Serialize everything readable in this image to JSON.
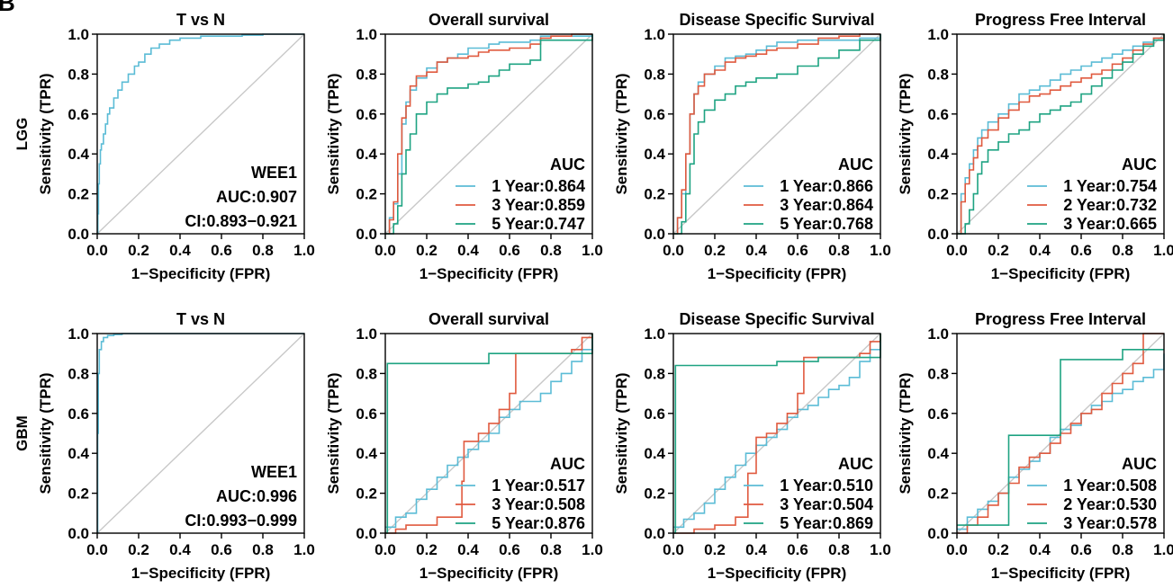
{
  "figure": {
    "panel_letter": "B",
    "xlabel": "1−Specificity (FPR)",
    "ylabel": "Sensitivity (TPR)",
    "ticks": [
      "0.0",
      "0.2",
      "0.4",
      "0.6",
      "0.8",
      "1.0"
    ],
    "legend_title": "AUC",
    "colors": {
      "c1": "#5bbcd6",
      "c2": "#e05a3f",
      "c3": "#1ea382",
      "diag": "#c8c8c8",
      "axis": "#000000"
    }
  },
  "chart_data": [
    {
      "type": "line",
      "row": "LGG",
      "title": "T vs N",
      "xlim": [
        0,
        1
      ],
      "ylim": [
        0,
        1
      ],
      "annotation": [
        "WEE1",
        "AUC:0.907",
        "CI:0.893−0.921"
      ],
      "series": [
        {
          "color": "c1",
          "x": [
            0,
            0.003,
            0.006,
            0.01,
            0.015,
            0.02,
            0.03,
            0.04,
            0.05,
            0.06,
            0.08,
            0.1,
            0.12,
            0.15,
            0.18,
            0.2,
            0.23,
            0.26,
            0.3,
            0.35,
            0.4,
            0.5,
            0.6,
            0.7,
            0.8,
            0.9,
            1.0
          ],
          "y": [
            0,
            0.1,
            0.25,
            0.35,
            0.42,
            0.45,
            0.5,
            0.55,
            0.6,
            0.63,
            0.68,
            0.72,
            0.76,
            0.8,
            0.84,
            0.86,
            0.9,
            0.93,
            0.95,
            0.97,
            0.98,
            0.99,
            0.99,
            0.995,
            1,
            1,
            1
          ]
        }
      ]
    },
    {
      "type": "line",
      "row": "",
      "title": "Overall survival",
      "xlim": [
        0,
        1
      ],
      "ylim": [
        0,
        1
      ],
      "legend": [
        "1 Year:0.864",
        "3 Year:0.859",
        "5 Year:0.747"
      ],
      "series": [
        {
          "name": "1 Year:0.864",
          "color": "c1",
          "x": [
            0,
            0.02,
            0.04,
            0.06,
            0.08,
            0.1,
            0.12,
            0.15,
            0.2,
            0.25,
            0.3,
            0.35,
            0.4,
            0.45,
            0.5,
            0.55,
            0.6,
            0.7,
            0.75,
            0.8,
            0.9,
            1.0
          ],
          "y": [
            0,
            0.08,
            0.15,
            0.3,
            0.55,
            0.66,
            0.72,
            0.78,
            0.83,
            0.86,
            0.88,
            0.9,
            0.93,
            0.93,
            0.95,
            0.96,
            0.96,
            0.97,
            0.99,
            0.99,
            0.99,
            1
          ]
        },
        {
          "name": "3 Year:0.859",
          "color": "c2",
          "x": [
            0,
            0.02,
            0.04,
            0.06,
            0.08,
            0.1,
            0.12,
            0.15,
            0.2,
            0.25,
            0.3,
            0.35,
            0.4,
            0.45,
            0.5,
            0.6,
            0.7,
            0.75,
            0.8,
            0.9,
            1.0
          ],
          "y": [
            0,
            0.07,
            0.16,
            0.4,
            0.58,
            0.64,
            0.74,
            0.79,
            0.81,
            0.86,
            0.88,
            0.88,
            0.89,
            0.91,
            0.92,
            0.93,
            0.95,
            0.98,
            0.99,
            1,
            1
          ]
        },
        {
          "name": "5 Year:0.747",
          "color": "c3",
          "x": [
            0,
            0.04,
            0.06,
            0.08,
            0.1,
            0.12,
            0.15,
            0.2,
            0.25,
            0.3,
            0.35,
            0.4,
            0.45,
            0.5,
            0.55,
            0.6,
            0.7,
            0.75,
            0.8,
            0.9,
            1.0
          ],
          "y": [
            0,
            0.05,
            0.14,
            0.3,
            0.42,
            0.5,
            0.6,
            0.66,
            0.7,
            0.73,
            0.73,
            0.75,
            0.76,
            0.79,
            0.82,
            0.85,
            0.87,
            0.97,
            0.97,
            0.97,
            1
          ]
        }
      ]
    },
    {
      "type": "line",
      "row": "",
      "title": "Disease Specific Survival",
      "xlim": [
        0,
        1
      ],
      "ylim": [
        0,
        1
      ],
      "legend": [
        "1 Year:0.866",
        "3 Year:0.864",
        "5 Year:0.768"
      ],
      "series": [
        {
          "name": "1 Year:0.866",
          "color": "c1",
          "x": [
            0,
            0.02,
            0.04,
            0.06,
            0.08,
            0.1,
            0.12,
            0.15,
            0.2,
            0.25,
            0.3,
            0.35,
            0.4,
            0.45,
            0.5,
            0.6,
            0.7,
            0.8,
            0.9,
            1.0
          ],
          "y": [
            0,
            0.08,
            0.2,
            0.4,
            0.6,
            0.7,
            0.76,
            0.8,
            0.84,
            0.88,
            0.89,
            0.9,
            0.92,
            0.94,
            0.96,
            0.97,
            0.97,
            0.97,
            0.98,
            1
          ]
        },
        {
          "name": "3 Year:0.864",
          "color": "c2",
          "x": [
            0,
            0.02,
            0.04,
            0.06,
            0.08,
            0.1,
            0.12,
            0.15,
            0.2,
            0.25,
            0.3,
            0.35,
            0.4,
            0.45,
            0.5,
            0.6,
            0.7,
            0.8,
            0.9,
            1.0
          ],
          "y": [
            0,
            0.08,
            0.22,
            0.4,
            0.6,
            0.7,
            0.74,
            0.8,
            0.82,
            0.86,
            0.88,
            0.89,
            0.9,
            0.92,
            0.93,
            0.95,
            0.98,
            0.99,
            1,
            1
          ]
        },
        {
          "name": "5 Year:0.768",
          "color": "c3",
          "x": [
            0,
            0.04,
            0.06,
            0.08,
            0.1,
            0.12,
            0.15,
            0.2,
            0.25,
            0.3,
            0.35,
            0.4,
            0.5,
            0.6,
            0.7,
            0.8,
            0.9,
            1.0
          ],
          "y": [
            0,
            0.06,
            0.2,
            0.35,
            0.5,
            0.56,
            0.62,
            0.67,
            0.7,
            0.74,
            0.76,
            0.78,
            0.8,
            0.84,
            0.88,
            0.92,
            0.97,
            1
          ]
        }
      ]
    },
    {
      "type": "line",
      "row": "",
      "title": "Progress Free Interval",
      "xlim": [
        0,
        1
      ],
      "ylim": [
        0,
        1
      ],
      "legend": [
        "1 Year:0.754",
        "2 Year:0.732",
        "3 Year:0.665"
      ],
      "series": [
        {
          "name": "1 Year:0.754",
          "color": "c1",
          "x": [
            0,
            0.02,
            0.04,
            0.06,
            0.08,
            0.1,
            0.12,
            0.15,
            0.2,
            0.25,
            0.3,
            0.35,
            0.4,
            0.45,
            0.5,
            0.55,
            0.6,
            0.65,
            0.7,
            0.75,
            0.8,
            0.85,
            0.9,
            0.95,
            1.0
          ],
          "y": [
            0,
            0.2,
            0.28,
            0.35,
            0.42,
            0.48,
            0.52,
            0.56,
            0.6,
            0.65,
            0.7,
            0.72,
            0.74,
            0.77,
            0.8,
            0.82,
            0.84,
            0.86,
            0.88,
            0.9,
            0.92,
            0.94,
            0.96,
            0.98,
            1
          ]
        },
        {
          "name": "2 Year:0.732",
          "color": "c2",
          "x": [
            0,
            0.02,
            0.04,
            0.06,
            0.08,
            0.1,
            0.12,
            0.15,
            0.2,
            0.25,
            0.3,
            0.35,
            0.4,
            0.45,
            0.5,
            0.55,
            0.6,
            0.65,
            0.7,
            0.75,
            0.8,
            0.85,
            0.9,
            0.95,
            1.0
          ],
          "y": [
            0,
            0.16,
            0.25,
            0.32,
            0.38,
            0.44,
            0.48,
            0.52,
            0.58,
            0.62,
            0.66,
            0.69,
            0.7,
            0.72,
            0.74,
            0.76,
            0.78,
            0.8,
            0.82,
            0.85,
            0.88,
            0.92,
            0.95,
            0.98,
            1
          ]
        },
        {
          "name": "3 Year:0.665",
          "color": "c3",
          "x": [
            0,
            0.04,
            0.06,
            0.08,
            0.1,
            0.12,
            0.15,
            0.2,
            0.25,
            0.3,
            0.35,
            0.4,
            0.45,
            0.5,
            0.55,
            0.6,
            0.65,
            0.7,
            0.75,
            0.8,
            0.85,
            0.9,
            0.95,
            1.0
          ],
          "y": [
            0,
            0.05,
            0.12,
            0.2,
            0.3,
            0.36,
            0.42,
            0.46,
            0.5,
            0.52,
            0.56,
            0.6,
            0.62,
            0.64,
            0.66,
            0.7,
            0.74,
            0.78,
            0.82,
            0.86,
            0.9,
            0.94,
            0.97,
            1
          ]
        }
      ]
    },
    {
      "type": "line",
      "row": "GBM",
      "title": "T vs N",
      "xlim": [
        0,
        1
      ],
      "ylim": [
        0,
        1
      ],
      "annotation": [
        "WEE1",
        "AUC:0.996",
        "CI:0.993−0.999"
      ],
      "series": [
        {
          "color": "c1",
          "x": [
            0,
            0.002,
            0.005,
            0.01,
            0.02,
            0.03,
            0.05,
            0.08,
            0.12,
            0.2,
            0.4,
            1.0
          ],
          "y": [
            0,
            0.5,
            0.8,
            0.92,
            0.96,
            0.98,
            0.99,
            0.995,
            1,
            1,
            1,
            1
          ]
        }
      ]
    },
    {
      "type": "line",
      "row": "",
      "title": "Overall survival",
      "xlim": [
        0,
        1
      ],
      "ylim": [
        0,
        1
      ],
      "legend": [
        "1 Year:0.517",
        "3 Year:0.508",
        "5 Year:0.876"
      ],
      "series": [
        {
          "name": "1 Year:0.517",
          "color": "c1",
          "x": [
            0,
            0.05,
            0.1,
            0.15,
            0.2,
            0.25,
            0.3,
            0.35,
            0.4,
            0.45,
            0.5,
            0.55,
            0.6,
            0.65,
            0.7,
            0.75,
            0.8,
            0.85,
            0.9,
            0.95,
            1.0
          ],
          "y": [
            0.03,
            0.08,
            0.1,
            0.17,
            0.22,
            0.28,
            0.34,
            0.38,
            0.42,
            0.46,
            0.5,
            0.58,
            0.62,
            0.66,
            0.66,
            0.7,
            0.76,
            0.8,
            0.86,
            0.92,
            1
          ]
        },
        {
          "name": "3 Year:0.508",
          "color": "c2",
          "x": [
            0,
            0.05,
            0.1,
            0.15,
            0.2,
            0.25,
            0.3,
            0.35,
            0.37,
            0.38,
            0.45,
            0.5,
            0.55,
            0.6,
            0.62,
            0.63,
            0.7,
            0.75,
            0.8,
            0.9,
            0.95,
            1.0
          ],
          "y": [
            0,
            0.02,
            0.04,
            0.04,
            0.04,
            0.08,
            0.08,
            0.08,
            0.26,
            0.46,
            0.5,
            0.55,
            0.62,
            0.7,
            0.7,
            0.9,
            0.9,
            0.9,
            0.9,
            0.92,
            0.98,
            1
          ]
        },
        {
          "name": "5 Year:0.876",
          "color": "c3",
          "x": [
            0,
            0.01,
            0.4,
            0.5,
            0.7,
            0.9,
            1.0
          ],
          "y": [
            0,
            0.85,
            0.85,
            0.9,
            0.9,
            0.9,
            1
          ]
        }
      ]
    },
    {
      "type": "line",
      "row": "",
      "title": "Disease Specific Survival",
      "xlim": [
        0,
        1
      ],
      "ylim": [
        0,
        1
      ],
      "legend": [
        "1 Year:0.510",
        "3 Year:0.504",
        "5 Year:0.869"
      ],
      "series": [
        {
          "name": "1 Year:0.510",
          "color": "c1",
          "x": [
            0,
            0.05,
            0.1,
            0.15,
            0.2,
            0.25,
            0.3,
            0.35,
            0.4,
            0.45,
            0.5,
            0.55,
            0.6,
            0.65,
            0.7,
            0.75,
            0.8,
            0.85,
            0.9,
            0.95,
            1.0
          ],
          "y": [
            0.03,
            0.07,
            0.1,
            0.15,
            0.22,
            0.28,
            0.34,
            0.4,
            0.44,
            0.48,
            0.52,
            0.58,
            0.62,
            0.64,
            0.68,
            0.72,
            0.74,
            0.78,
            0.86,
            0.92,
            1
          ]
        },
        {
          "name": "3 Year:0.504",
          "color": "c2",
          "x": [
            0,
            0.1,
            0.2,
            0.3,
            0.35,
            0.36,
            0.4,
            0.45,
            0.5,
            0.55,
            0.6,
            0.62,
            0.63,
            0.7,
            0.8,
            0.9,
            0.95,
            1.0
          ],
          "y": [
            0,
            0.02,
            0.04,
            0.08,
            0.08,
            0.3,
            0.48,
            0.5,
            0.55,
            0.6,
            0.7,
            0.7,
            0.88,
            0.88,
            0.88,
            0.9,
            0.96,
            1
          ]
        },
        {
          "name": "5 Year:0.869",
          "color": "c3",
          "x": [
            0,
            0.01,
            0.4,
            0.5,
            0.7,
            0.9,
            1.0
          ],
          "y": [
            0,
            0.84,
            0.84,
            0.86,
            0.88,
            0.88,
            1
          ]
        }
      ]
    },
    {
      "type": "line",
      "row": "",
      "title": "Progress Free Interval",
      "xlim": [
        0,
        1
      ],
      "ylim": [
        0,
        1
      ],
      "legend": [
        "1 Year:0.508",
        "2 Year:0.530",
        "3 Year:0.578"
      ],
      "series": [
        {
          "name": "1 Year:0.508",
          "color": "c1",
          "x": [
            0,
            0.05,
            0.1,
            0.15,
            0.2,
            0.25,
            0.3,
            0.35,
            0.4,
            0.45,
            0.5,
            0.55,
            0.6,
            0.65,
            0.7,
            0.75,
            0.8,
            0.85,
            0.9,
            0.95,
            1.0
          ],
          "y": [
            0.02,
            0.08,
            0.12,
            0.16,
            0.2,
            0.28,
            0.32,
            0.36,
            0.4,
            0.48,
            0.52,
            0.54,
            0.6,
            0.64,
            0.66,
            0.7,
            0.72,
            0.76,
            0.78,
            0.82,
            0.9
          ]
        },
        {
          "name": "2 Year:0.530",
          "color": "c2",
          "x": [
            0,
            0.05,
            0.1,
            0.15,
            0.2,
            0.25,
            0.3,
            0.35,
            0.4,
            0.45,
            0.5,
            0.55,
            0.6,
            0.65,
            0.7,
            0.75,
            0.8,
            0.85,
            0.9,
            0.95,
            1.0
          ],
          "y": [
            0,
            0.04,
            0.08,
            0.14,
            0.2,
            0.25,
            0.33,
            0.38,
            0.4,
            0.45,
            0.5,
            0.55,
            0.6,
            0.62,
            0.7,
            0.75,
            0.8,
            0.85,
            1,
            1,
            1
          ]
        },
        {
          "name": "3 Year:0.578",
          "color": "c3",
          "x": [
            0,
            0.1,
            0.2,
            0.25,
            0.3,
            0.4,
            0.5,
            0.6,
            0.7,
            0.75,
            0.8,
            0.9,
            0.95,
            1.0
          ],
          "y": [
            0.04,
            0.04,
            0.04,
            0.49,
            0.49,
            0.49,
            0.87,
            0.87,
            0.87,
            0.87,
            0.92,
            0.92,
            0.92,
            0.92
          ]
        }
      ]
    }
  ]
}
